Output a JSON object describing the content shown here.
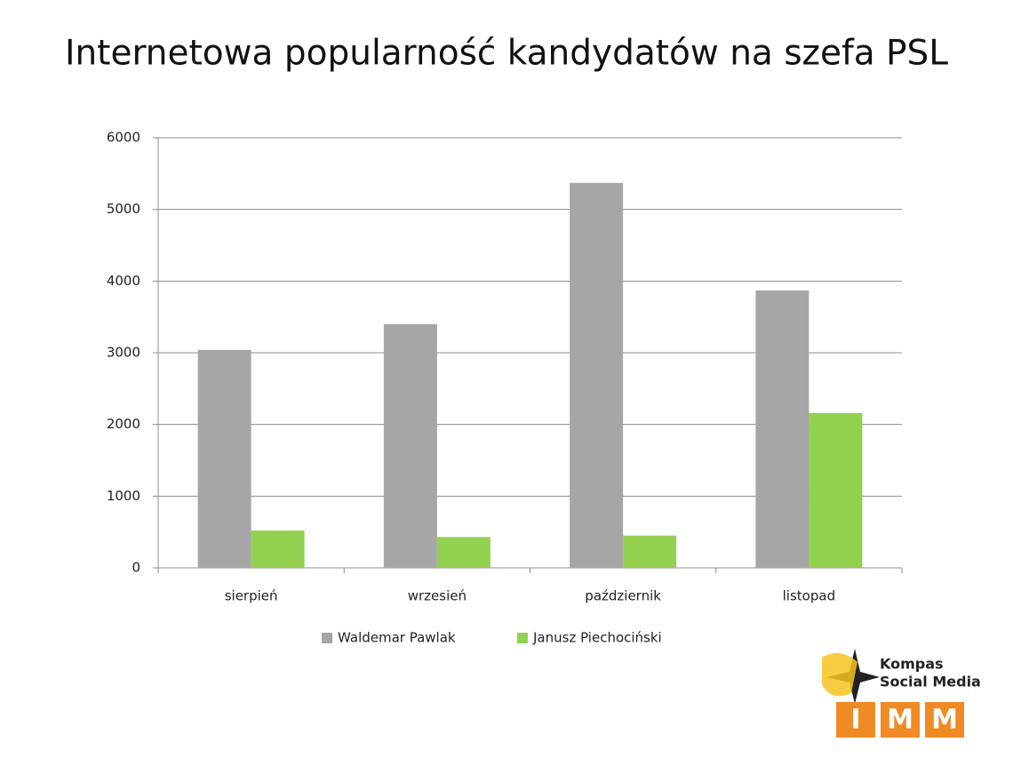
{
  "chart_data": {
    "type": "bar",
    "title": "Internetowa popularność kandydatów na szefa PSL",
    "categories": [
      "sierpień",
      "wrzesień",
      "październik",
      "listopad"
    ],
    "series": [
      {
        "name": "Waldemar Pawlak",
        "color": "#a6a6a6",
        "values": [
          3040,
          3400,
          5370,
          3870
        ]
      },
      {
        "name": "Janusz Piechociński",
        "color": "#92d050",
        "values": [
          520,
          430,
          450,
          2160
        ]
      }
    ],
    "ylim": [
      0,
      6000
    ],
    "yticks": [
      0,
      1000,
      2000,
      3000,
      4000,
      5000,
      6000
    ],
    "grid": true,
    "legend": "bottom"
  },
  "logo": {
    "line1": "Kompas",
    "line2": "Social Media",
    "letters": [
      "I",
      "M",
      "M"
    ]
  }
}
